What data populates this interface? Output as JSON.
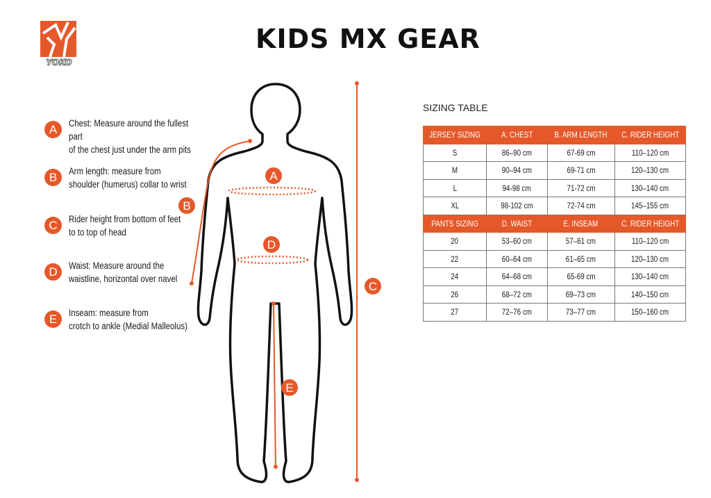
{
  "brand": {
    "logo_text": "YOKO",
    "accent_color": "#e5582a"
  },
  "title": "KIDS MX GEAR",
  "legend": [
    {
      "letter": "A",
      "line1": "Chest: Measure around  the fullest part",
      "line2": "of the chest just under the arm pits"
    },
    {
      "letter": "B",
      "line1": "Arm length: measure from",
      "line2": "shoulder (humerus) collar to wrist"
    },
    {
      "letter": "C",
      "line1": "Rider height from bottom of feet",
      "line2": "to to top of head"
    },
    {
      "letter": "D",
      "line1": "Waist: Measure around the",
      "line2": "waistline, horizontal over navel"
    },
    {
      "letter": "E",
      "line1": "Inseam: measure from",
      "line2": "crotch to ankle (Medial Malleolus)"
    }
  ],
  "figure_labels": {
    "a": "A",
    "b": "B",
    "c": "C",
    "d": "D",
    "e": "E"
  },
  "sizing_table": {
    "title": "SIZING TABLE",
    "jersey_headers": [
      "JERSEY SIZING",
      "A. CHEST",
      "B. ARM LENGTH",
      "C. RIDER HEIGHT"
    ],
    "jersey_rows": [
      [
        "S",
        "86–90 cm",
        "67-69 cm",
        "110–120 cm"
      ],
      [
        "M",
        "90–94 cm",
        "69-71 cm",
        "120–130 cm"
      ],
      [
        "L",
        "94-98 cm",
        "71-72 cm",
        "130–140 cm"
      ],
      [
        "XL",
        "98-102 cm",
        "72-74 cm",
        "145–155 cm"
      ]
    ],
    "pants_headers": [
      "PANTS SIZING",
      "D. WAIST",
      "E. INSEAM",
      "C. RIDER HEIGHT"
    ],
    "pants_rows": [
      [
        "20",
        "53–60 cm",
        "57–61 cm",
        "110–120 cm"
      ],
      [
        "22",
        "60–64 cm",
        "61–65 cm",
        "120–130 cm"
      ],
      [
        "24",
        "64–68 cm",
        "65-69 cm",
        "130–140 cm"
      ],
      [
        "26",
        "68–72 cm",
        "69–73 cm",
        "140–150 cm"
      ],
      [
        "27",
        "72–76 cm",
        "73–77 cm",
        "150–160 cm"
      ]
    ]
  }
}
